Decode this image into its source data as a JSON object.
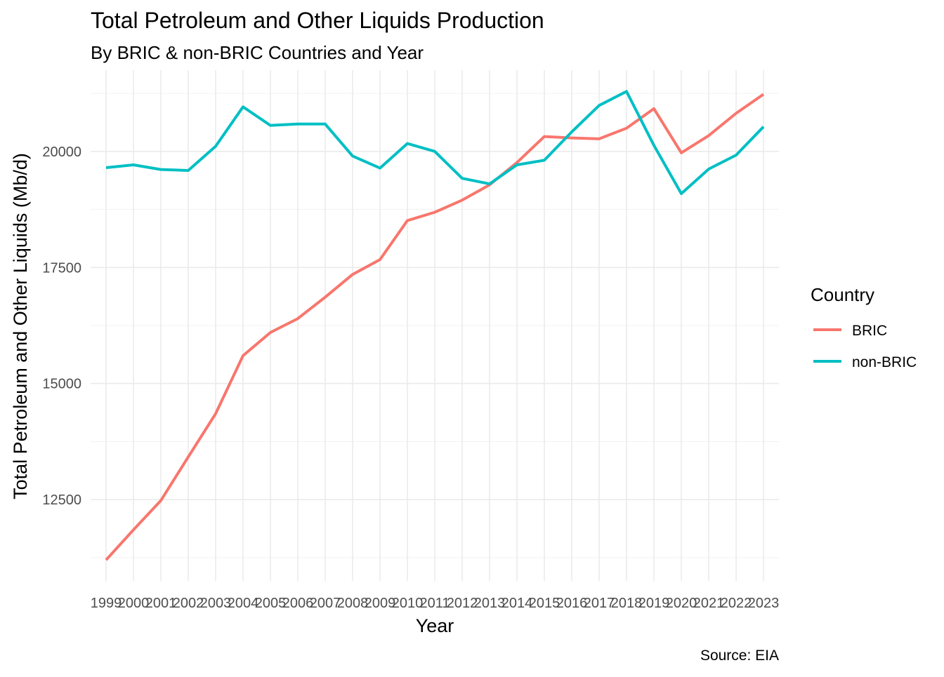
{
  "chart_data": {
    "type": "line",
    "title": "Total Petroleum and Other Liquids Production",
    "subtitle": "By BRIC & non-BRIC Countries and Year",
    "xlabel": "Year",
    "ylabel": "Total Petroleum and Other Liquids (Mb/d)",
    "caption": "Source: EIA",
    "x": [
      1999,
      2000,
      2001,
      2002,
      2003,
      2004,
      2005,
      2006,
      2007,
      2008,
      2009,
      2010,
      2011,
      2012,
      2013,
      2014,
      2015,
      2016,
      2017,
      2018,
      2019,
      2020,
      2021,
      2022,
      2023
    ],
    "x_tick_labels": [
      "1999",
      "2000",
      "2001",
      "2002",
      "2003",
      "2004",
      "2005",
      "2006",
      "2007",
      "2008",
      "2009",
      "2010",
      "2011",
      "2012",
      "2013",
      "2014",
      "2015",
      "2016",
      "2017",
      "2018",
      "2019",
      "2020",
      "2021",
      "2022",
      "2023"
    ],
    "y_ticks": [
      12500,
      15000,
      17500,
      20000
    ],
    "y_tick_labels": [
      "12500",
      "15000",
      "17500",
      "20000"
    ],
    "ylim": [
      10750,
      21750
    ],
    "grid": true,
    "legend": {
      "title": "Country",
      "position": "right"
    },
    "series": [
      {
        "name": "BRIC",
        "color": "#F8766D",
        "values": [
          11200,
          11850,
          12480,
          13420,
          14350,
          15600,
          16100,
          16400,
          16860,
          17350,
          17670,
          18510,
          18690,
          18950,
          19280,
          19760,
          20320,
          20290,
          20270,
          20500,
          20920,
          19970,
          20340,
          20820,
          21230
        ]
      },
      {
        "name": "non-BRIC",
        "color": "#00BFC4",
        "values": [
          19650,
          19710,
          19610,
          19590,
          20110,
          20960,
          20560,
          20590,
          20590,
          19900,
          19640,
          20170,
          20000,
          19420,
          19300,
          19710,
          19810,
          20420,
          20990,
          21290,
          20130,
          19090,
          19620,
          19920,
          20530
        ]
      }
    ]
  }
}
